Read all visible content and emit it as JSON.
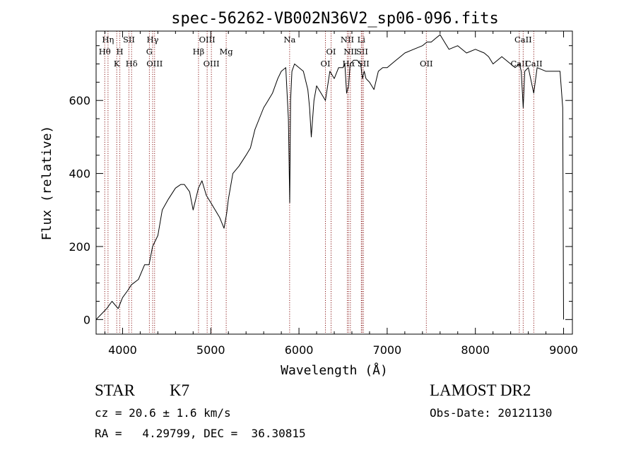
{
  "chart_data": {
    "type": "line",
    "title": "spec-56262-VB002N36V2_sp06-096.fits",
    "xlabel": "Wavelength (Å)",
    "ylabel": "Flux (relative)",
    "xlim": [
      3700,
      9100
    ],
    "ylim": [
      -40,
      790
    ],
    "xticks": [
      4000,
      5000,
      6000,
      7000,
      8000,
      9000
    ],
    "yticks": [
      0,
      200,
      400,
      600
    ],
    "grid": false,
    "series": [
      {
        "line_color": "#000000",
        "x": [
          3700,
          3760,
          3820,
          3880,
          3950,
          4000,
          4060,
          4100,
          4180,
          4250,
          4300,
          4340,
          4400,
          4450,
          4520,
          4600,
          4660,
          4700,
          4760,
          4800,
          4860,
          4900,
          4950,
          5000,
          5050,
          5100,
          5150,
          5180,
          5200,
          5250,
          5320,
          5400,
          5450,
          5500,
          5550,
          5600,
          5650,
          5700,
          5760,
          5800,
          5850,
          5880,
          5895,
          5905,
          5920,
          5950,
          6000,
          6050,
          6100,
          6120,
          6140,
          6170,
          6200,
          6250,
          6300,
          6350,
          6400,
          6450,
          6500,
          6520,
          6540,
          6563,
          6580,
          6620,
          6660,
          6700,
          6720,
          6740,
          6760,
          6800,
          6850,
          6880,
          6900,
          6950,
          7000,
          7050,
          7100,
          7150,
          7200,
          7300,
          7400,
          7450,
          7500,
          7550,
          7600,
          7650,
          7700,
          7800,
          7900,
          8000,
          8100,
          8150,
          8200,
          8300,
          8400,
          8450,
          8500,
          8520,
          8542,
          8560,
          8600,
          8662,
          8700,
          8800,
          8900,
          8960,
          8990,
          9000
        ],
        "y": [
          0,
          15,
          30,
          50,
          30,
          60,
          80,
          95,
          110,
          150,
          150,
          200,
          230,
          300,
          330,
          360,
          370,
          370,
          350,
          300,
          360,
          380,
          340,
          320,
          300,
          280,
          250,
          290,
          330,
          400,
          420,
          450,
          470,
          520,
          550,
          580,
          600,
          620,
          660,
          680,
          690,
          550,
          320,
          600,
          680,
          700,
          690,
          680,
          630,
          580,
          500,
          600,
          640,
          620,
          600,
          680,
          660,
          690,
          690,
          700,
          620,
          640,
          700,
          710,
          710,
          700,
          660,
          680,
          660,
          650,
          630,
          660,
          680,
          690,
          690,
          700,
          710,
          720,
          730,
          740,
          750,
          760,
          760,
          770,
          780,
          760,
          740,
          750,
          730,
          740,
          730,
          720,
          700,
          720,
          700,
          690,
          700,
          680,
          580,
          680,
          690,
          620,
          690,
          680,
          680,
          680,
          580,
          0
        ]
      }
    ],
    "line_markers": [
      {
        "wl": 3798,
        "label": "Hθ",
        "row": 2
      },
      {
        "wl": 3835,
        "label": "Hη",
        "row": 1
      },
      {
        "wl": 3934,
        "label": "K",
        "row": 3
      },
      {
        "wl": 3969,
        "label": "H",
        "row": 2
      },
      {
        "wl": 4072,
        "label": "SII",
        "row": 1
      },
      {
        "wl": 4102,
        "label": "Hδ",
        "row": 3
      },
      {
        "wl": 4304,
        "label": "G",
        "row": 2
      },
      {
        "wl": 4341,
        "label": "Hγ",
        "row": 1
      },
      {
        "wl": 4363,
        "label": "OIII",
        "row": 3
      },
      {
        "wl": 4861,
        "label": "Hβ",
        "row": 2
      },
      {
        "wl": 4959,
        "label": "OIII",
        "row": 1
      },
      {
        "wl": 5007,
        "label": "OIII",
        "row": 3
      },
      {
        "wl": 5175,
        "label": "Mg",
        "row": 2
      },
      {
        "wl": 5894,
        "label": "Na",
        "row": 1
      },
      {
        "wl": 6300,
        "label": "OI",
        "row": 3
      },
      {
        "wl": 6364,
        "label": "OI",
        "row": 2
      },
      {
        "wl": 6548,
        "label": "NII",
        "row": 1
      },
      {
        "wl": 6563,
        "label": "Hα",
        "row": 3
      },
      {
        "wl": 6583,
        "label": "NII",
        "row": 2
      },
      {
        "wl": 6707,
        "label": "Li",
        "row": 1
      },
      {
        "wl": 6716,
        "label": "SII",
        "row": 2
      },
      {
        "wl": 6731,
        "label": "SII",
        "row": 3
      },
      {
        "wl": 7444,
        "label": "OII",
        "row": 3
      },
      {
        "wl": 8498,
        "label": "CaII",
        "row": 3
      },
      {
        "wl": 8542,
        "label": "CaII",
        "row": 1
      },
      {
        "wl": 8662,
        "label": "CaII",
        "row": 3
      }
    ],
    "marker_color": "#8b1a1a"
  },
  "info": {
    "object_class": "STAR",
    "subclass": "K7",
    "survey": "LAMOST DR2",
    "redshift_line": "cz = 20.6 ± 1.6 km/s",
    "obs_date_line": "Obs-Date: 20121130",
    "coords_line": "RA =   4.29799, DEC =  36.30815"
  }
}
